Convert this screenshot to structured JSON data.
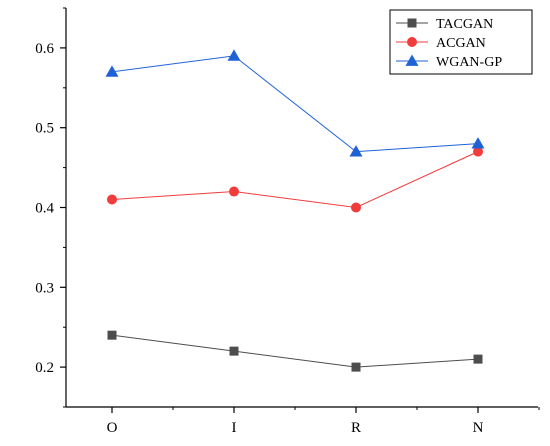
{
  "chart_data": {
    "type": "line",
    "title": "",
    "xlabel": "",
    "ylabel": "",
    "categories": [
      "O",
      "I",
      "R",
      "N"
    ],
    "yticks": [
      0.2,
      0.3,
      0.4,
      0.5,
      0.6
    ],
    "ylim": [
      0.15,
      0.65
    ],
    "grid": false,
    "legend_position": "top-right",
    "series": [
      {
        "name": "TACGAN",
        "values": [
          0.24,
          0.22,
          0.2,
          0.21
        ],
        "color": "#4d4d4d",
        "marker": "square"
      },
      {
        "name": "ACGAN",
        "values": [
          0.41,
          0.42,
          0.4,
          0.47
        ],
        "color": "#f23c3c",
        "marker": "circle"
      },
      {
        "name": "WGAN-GP",
        "values": [
          0.57,
          0.59,
          0.47,
          0.48
        ],
        "color": "#1f62d8",
        "marker": "triangle"
      }
    ]
  }
}
